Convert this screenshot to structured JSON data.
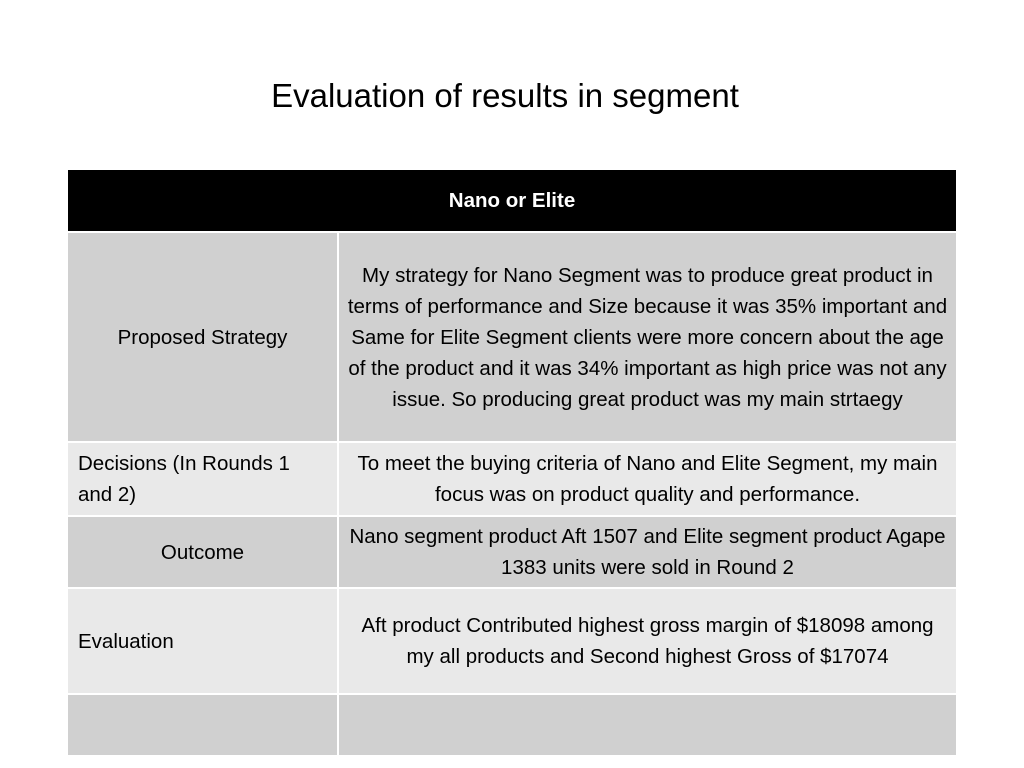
{
  "title": "Evaluation of results in segment",
  "table": {
    "header": "Nano or Elite",
    "rows": [
      {
        "label": "Proposed Strategy",
        "text": "My strategy for Nano Segment was to produce great product in terms of performance and Size because it was 35% important and Same for Elite Segment clients were more concern about the age of the product and it was 34% important as high price was not any issue. So producing great product was my main strtaegy"
      },
      {
        "label": "Decisions (In Rounds 1 and 2)",
        "text": "To meet the buying criteria of Nano and Elite Segment, my main focus was on product quality and performance."
      },
      {
        "label": "Outcome",
        "text": "Nano segment product Aft 1507 and Elite segment product Agape 1383 units were sold in Round 2"
      },
      {
        "label": "Evaluation",
        "text": "Aft product Contributed highest gross margin of $18098 among my all products and Second highest Gross of $17074"
      },
      {
        "label": "",
        "text": ""
      }
    ]
  }
}
